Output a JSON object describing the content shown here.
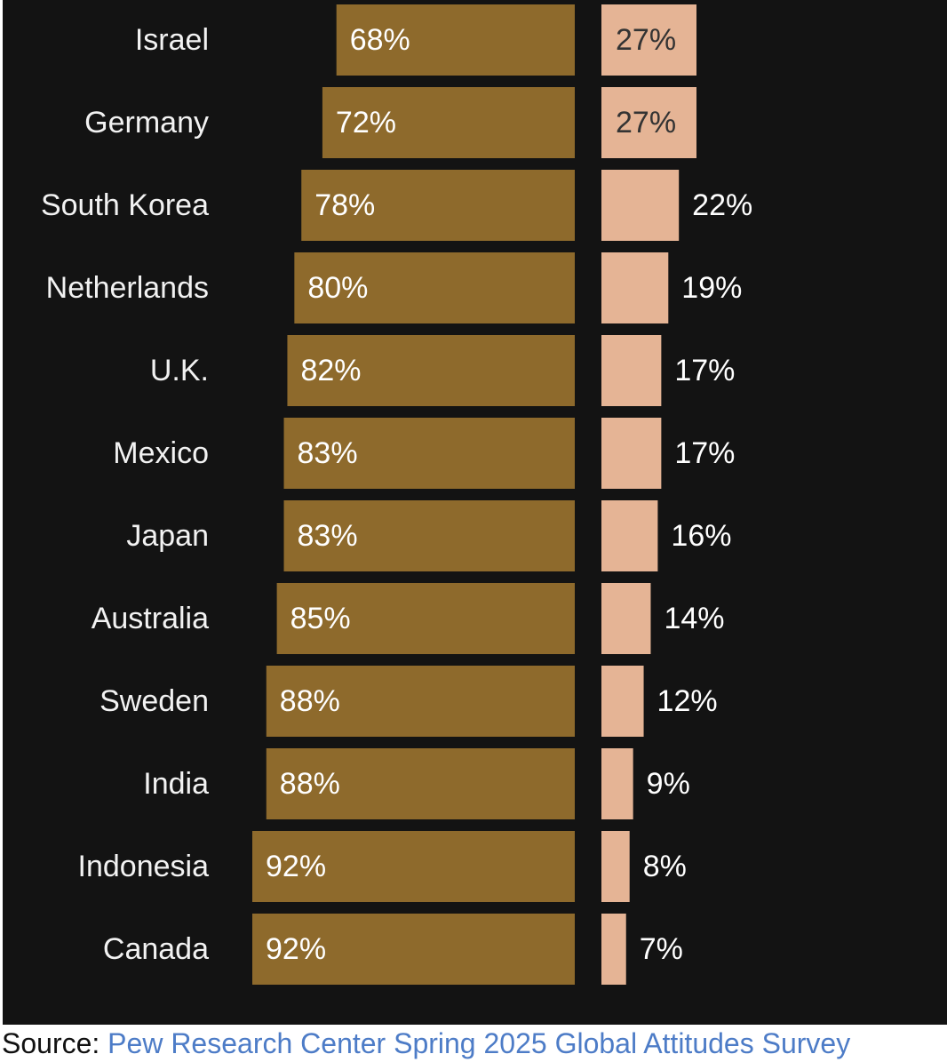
{
  "chart_data": {
    "type": "bar",
    "orientation": "horizontal-diverging",
    "categories": [
      "Israel",
      "Germany",
      "South Korea",
      "Netherlands",
      "U.K.",
      "Mexico",
      "Japan",
      "Australia",
      "Sweden",
      "India",
      "Indonesia",
      "Canada"
    ],
    "series": [
      {
        "values": [
          68,
          72,
          78,
          80,
          82,
          83,
          83,
          85,
          88,
          88,
          92,
          92
        ],
        "labels": [
          "68%",
          "72%",
          "78%",
          "80%",
          "82%",
          "83%",
          "83%",
          "85%",
          "88%",
          "88%",
          "92%",
          "92%"
        ],
        "color": "#8e6a2c"
      },
      {
        "values": [
          27,
          27,
          22,
          19,
          17,
          17,
          16,
          14,
          12,
          9,
          8,
          7
        ],
        "labels": [
          "27%",
          "27%",
          "22%",
          "19%",
          "17%",
          "17%",
          "16%",
          "14%",
          "12%",
          "9%",
          "8%",
          "7%"
        ],
        "color": "#e5b495"
      }
    ],
    "xlim": [
      0,
      100
    ],
    "background": "#131313",
    "grid": false,
    "legend": "none"
  },
  "source": {
    "prefix": "Source: ",
    "link_text": "Pew Research Center Spring 2025 Global Attitudes Survey",
    "link_color": "#4d7cc7"
  }
}
